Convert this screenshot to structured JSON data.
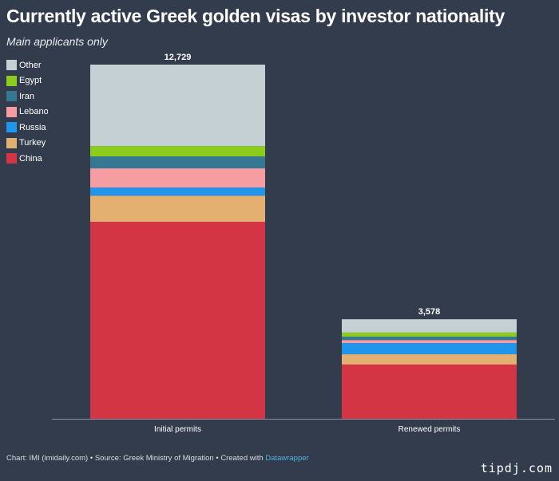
{
  "header": {
    "title": "Currently active Greek golden visas by investor nationality",
    "subtitle": "Main applicants only"
  },
  "legend": [
    {
      "label": "Other",
      "color": "#c5d0d5"
    },
    {
      "label": "Egypt",
      "color": "#8ccc1c"
    },
    {
      "label": "Iran",
      "color": "#357893"
    },
    {
      "label": "Lebanon",
      "color": "#f59da0"
    },
    {
      "label": "Russia",
      "color": "#1f96eb"
    },
    {
      "label": "Turkey",
      "color": "#e3b072"
    },
    {
      "label": "China",
      "color": "#d33545"
    }
  ],
  "chart_data": {
    "type": "bar",
    "stacked": true,
    "title": "Currently active Greek golden visas by investor nationality",
    "subtitle": "Main applicants only",
    "categories": [
      "Initial permits",
      "Renewed permits"
    ],
    "totals": [
      "12,729",
      "3,578"
    ],
    "ylim": [
      0,
      12729
    ],
    "series": [
      {
        "name": "China",
        "color": "#d33545",
        "values": [
          7080,
          1950
        ]
      },
      {
        "name": "Turkey",
        "color": "#e3b072",
        "values": [
          940,
          370
        ]
      },
      {
        "name": "Russia",
        "color": "#1f96eb",
        "values": [
          290,
          400
        ]
      },
      {
        "name": "Lebanon",
        "color": "#f59da0",
        "values": [
          690,
          110
        ]
      },
      {
        "name": "Iran",
        "color": "#357893",
        "values": [
          430,
          120
        ]
      },
      {
        "name": "Egypt",
        "color": "#8ccc1c",
        "values": [
          370,
          150
        ]
      },
      {
        "name": "Other",
        "color": "#c5d0d5",
        "values": [
          2929,
          478
        ]
      }
    ]
  },
  "footer": {
    "text": "Chart: IMI (imidaily.com) • Source: Greek Ministry of Migration • Created with ",
    "link": "Datawrapper"
  },
  "watermark": "tipdj.com"
}
